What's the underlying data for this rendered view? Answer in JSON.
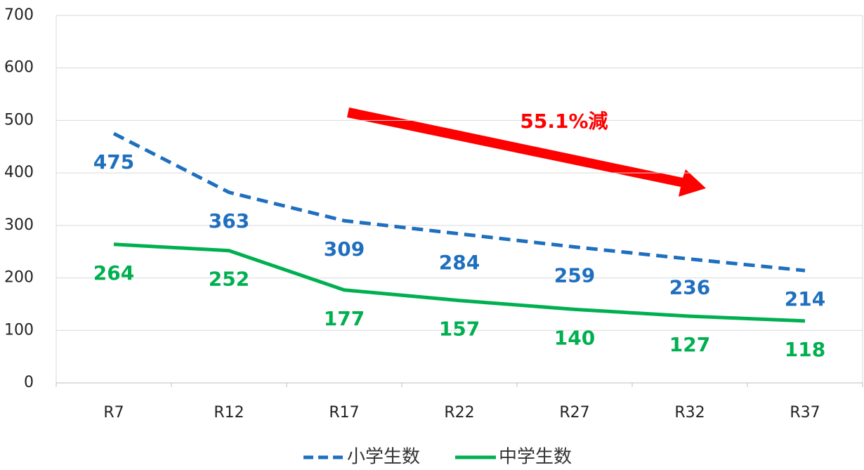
{
  "chart_data": {
    "type": "line",
    "categories": [
      "R7",
      "R12",
      "R17",
      "R22",
      "R27",
      "R32",
      "R37"
    ],
    "series": [
      {
        "name": "小学生数",
        "color": "#1f6fbf",
        "dash": true,
        "values": [
          475,
          363,
          309,
          284,
          259,
          236,
          214
        ]
      },
      {
        "name": "中学生数",
        "color": "#00b050",
        "dash": false,
        "values": [
          264,
          252,
          177,
          157,
          140,
          127,
          118
        ]
      }
    ],
    "ylim": [
      0,
      700
    ],
    "yticks": [
      0,
      100,
      200,
      300,
      400,
      500,
      600,
      700
    ],
    "grid": true,
    "annotation": "55.1%減",
    "annotation_color": "#ff0000",
    "legend": "bottom"
  }
}
